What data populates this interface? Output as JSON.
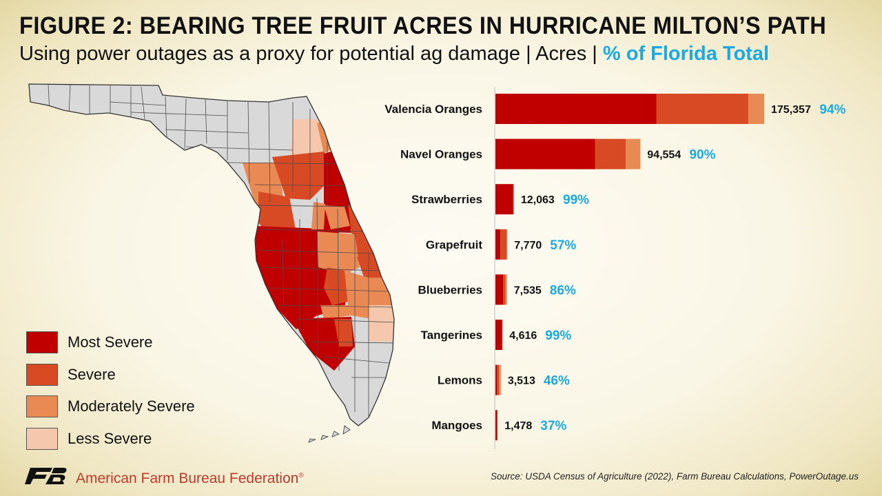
{
  "title": "FIGURE 2: BEARING TREE FRUIT ACRES IN HURRICANE MILTON’S PATH",
  "subtitle_main": "Using power outages as a proxy for potential ag damage | Acres | ",
  "subtitle_pct": "% of Florida Total",
  "colors": {
    "most_severe": "#c00000",
    "severe": "#d84a24",
    "moderately_severe": "#e98a55",
    "less_severe": "#f5c8ad",
    "no_outage": "#d9d9d9",
    "pct_text": "#1ba9e1"
  },
  "legend": [
    {
      "label": "Most Severe",
      "color": "#c00000"
    },
    {
      "label": "Severe",
      "color": "#d84a24"
    },
    {
      "label": "Moderately Severe",
      "color": "#e98a55"
    },
    {
      "label": "Less Severe",
      "color": "#f5c8ad"
    }
  ],
  "chart_data": {
    "type": "bar",
    "orientation": "horizontal",
    "stacked": true,
    "categories": [
      "Valencia Oranges",
      "Navel Oranges",
      "Strawberries",
      "Grapefruit",
      "Blueberries",
      "Tangerines",
      "Lemons",
      "Mangoes"
    ],
    "series": [
      {
        "name": "Most Severe",
        "color": "#c00000",
        "values": [
          105000,
          65000,
          11600,
          3200,
          5100,
          4400,
          900,
          1050
        ]
      },
      {
        "name": "Severe",
        "color": "#d84a24",
        "values": [
          60000,
          20000,
          300,
          4000,
          1500,
          150,
          1500,
          280
        ]
      },
      {
        "name": "Moderately Severe",
        "color": "#e98a55",
        "values": [
          10357,
          9554,
          163,
          570,
          935,
          66,
          1113,
          148
        ]
      }
    ],
    "totals": [
      "175,357",
      "94,554",
      "12,063",
      "7,770",
      "7,535",
      "4,616",
      "3,513",
      "1,478"
    ],
    "percent_of_florida": [
      "94%",
      "90%",
      "99%",
      "57%",
      "86%",
      "99%",
      "46%",
      "37%"
    ],
    "xlim": [
      0,
      175357
    ]
  },
  "footer": {
    "org_name": "American Farm Bureau Federation",
    "registered": "®",
    "logo_text": "FB",
    "source": "Source: USDA Census of Agriculture (2022), Farm Bureau Calculations, PowerOutage.us"
  }
}
